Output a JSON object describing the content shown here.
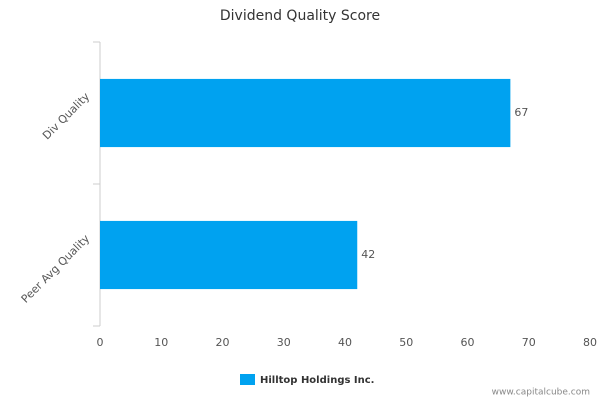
{
  "chart_data": {
    "type": "bar",
    "orientation": "horizontal",
    "title": "Dividend Quality Score",
    "categories": [
      "Div Quality",
      "Peer Avg Quality"
    ],
    "series": [
      {
        "name": "Hilltop Holdings Inc.",
        "color": "#00a2f0",
        "values": [
          67,
          42
        ]
      }
    ],
    "xlim": [
      0,
      80
    ],
    "xticks": [
      0,
      10,
      20,
      30,
      40,
      50,
      60,
      70,
      80
    ],
    "grid": false,
    "legend": "bottom",
    "source": "www.capitalcube.com"
  }
}
